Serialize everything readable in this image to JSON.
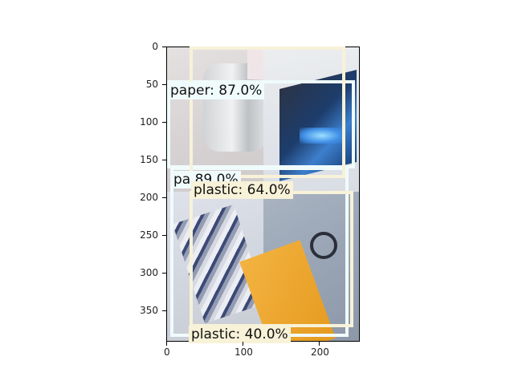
{
  "figure": {
    "y_axis": {
      "ticks": [
        "0",
        "50",
        "100",
        "150",
        "200",
        "250",
        "300",
        "350"
      ]
    },
    "x_axis": {
      "ticks": [
        "0",
        "100",
        "200"
      ]
    }
  },
  "photo": {
    "icon": "recycling-photo-collage",
    "panels": [
      "paper",
      "plastic-bottle",
      "blue-carton",
      "corrugated-cardboard"
    ]
  },
  "detections": [
    {
      "label": "paper: 87.0%",
      "class": "paper",
      "color": "#f0fbfc"
    },
    {
      "label": "pa           89.0%",
      "class": "paper",
      "color": "#f0fbfc"
    },
    {
      "label": "plastic: 64.0%",
      "class": "plastic",
      "color": "#f7f2d8"
    },
    {
      "label": "plastic: 40.0%",
      "class": "plastic",
      "color": "#f7f2d8"
    }
  ]
}
